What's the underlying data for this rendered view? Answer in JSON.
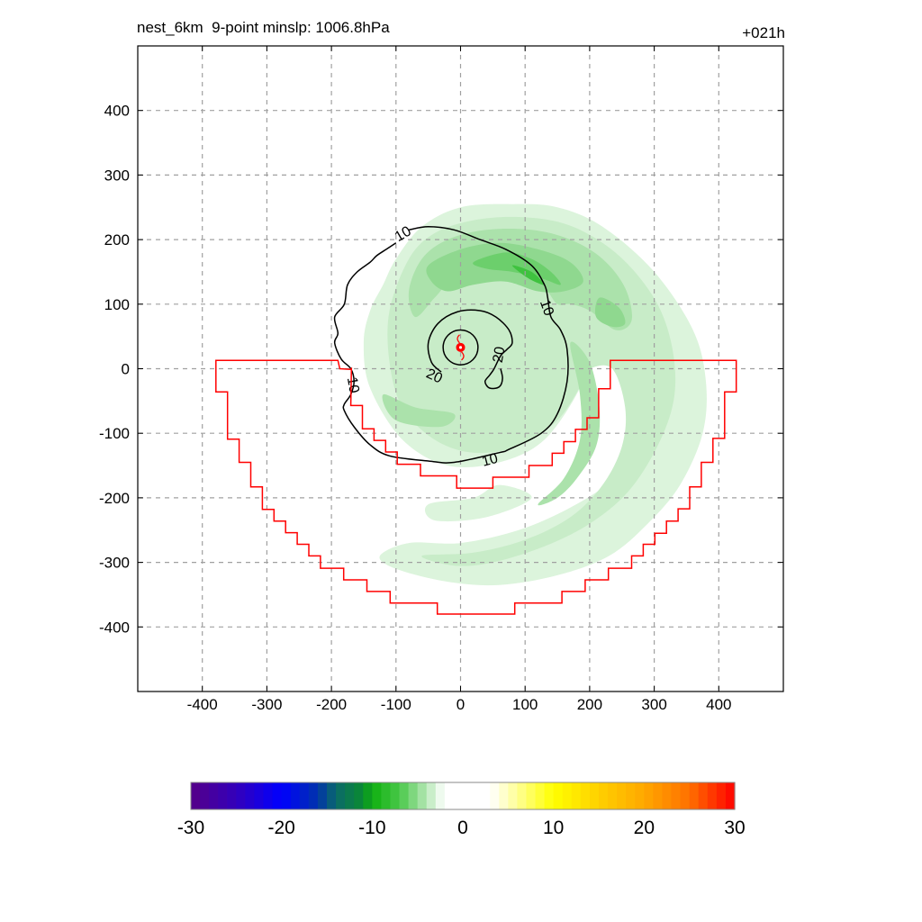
{
  "chart_data": {
    "type": "heatmap",
    "title_left": "nest_6km  9-point minslp: 1006.8hPa",
    "title_right": "+021h",
    "xlabel": "",
    "ylabel": "",
    "xlim": [
      -500,
      500
    ],
    "ylim": [
      -500,
      500
    ],
    "grid": true,
    "x_ticks": [
      -400,
      -300,
      -200,
      -100,
      0,
      100,
      200,
      300,
      400
    ],
    "y_ticks": [
      400,
      300,
      200,
      100,
      0,
      -100,
      -200,
      -300,
      -400
    ],
    "storm_center": [
      0,
      33
    ],
    "storm_symbol": "tropical-cyclone-icon",
    "colorbar": {
      "min": -30,
      "max": 30,
      "step": 1,
      "tick_labels": [
        "-30",
        "-20",
        "-10",
        "0",
        "10",
        "20",
        "30"
      ],
      "tick_values": [
        -30,
        -20,
        -10,
        0,
        10,
        20,
        30
      ],
      "anchor_colors": [
        {
          "v": -30,
          "c": "#550088"
        },
        {
          "v": -25,
          "c": "#3300bb"
        },
        {
          "v": -20,
          "c": "#0000ff"
        },
        {
          "v": -16,
          "c": "#0033aa"
        },
        {
          "v": -14,
          "c": "#0b6a6a"
        },
        {
          "v": -11,
          "c": "#0a8a30"
        },
        {
          "v": -10,
          "c": "#10b010"
        },
        {
          "v": -7,
          "c": "#48c848"
        },
        {
          "v": -5,
          "c": "#90dc90"
        },
        {
          "v": -3,
          "c": "#dcf4dc"
        },
        {
          "v": -2,
          "c": "#ffffff"
        },
        {
          "v": 3,
          "c": "#ffffff"
        },
        {
          "v": 4,
          "c": "#ffffe0"
        },
        {
          "v": 10,
          "c": "#ffff00"
        },
        {
          "v": 15,
          "c": "#ffd000"
        },
        {
          "v": 20,
          "c": "#ffa800"
        },
        {
          "v": 25,
          "c": "#ff7000"
        },
        {
          "v": 30,
          "c": "#ff0000"
        }
      ]
    },
    "shading_levels": [
      {
        "level": -3,
        "color": "#dcf4dc"
      },
      {
        "level": -4,
        "color": "#c8ecc8"
      },
      {
        "level": -5,
        "color": "#abe2ab"
      },
      {
        "level": -6,
        "color": "#8fd88f"
      },
      {
        "level": -7,
        "color": "#6ccf6c"
      },
      {
        "level": -8,
        "color": "#3fc23f"
      }
    ],
    "shaded_regions": [
      {
        "level": -3,
        "points": [
          [
            -120,
            130
          ],
          [
            -100,
            170
          ],
          [
            -60,
            220
          ],
          [
            0,
            250
          ],
          [
            80,
            255
          ],
          [
            150,
            250
          ],
          [
            220,
            220
          ],
          [
            300,
            150
          ],
          [
            360,
            60
          ],
          [
            380,
            -20
          ],
          [
            375,
            -100
          ],
          [
            340,
            -180
          ],
          [
            290,
            -240
          ],
          [
            230,
            -290
          ],
          [
            150,
            -320
          ],
          [
            60,
            -335
          ],
          [
            -20,
            -330
          ],
          [
            -100,
            -310
          ],
          [
            -125,
            -290
          ],
          [
            -80,
            -270
          ],
          [
            0,
            -270
          ],
          [
            90,
            -250
          ],
          [
            170,
            -215
          ],
          [
            230,
            -175
          ],
          [
            265,
            -120
          ],
          [
            270,
            -50
          ],
          [
            250,
            10
          ],
          [
            195,
            20
          ],
          [
            185,
            -30
          ],
          [
            130,
            -110
          ],
          [
            60,
            -145
          ],
          [
            -20,
            -150
          ],
          [
            -90,
            -110
          ],
          [
            -140,
            -30
          ],
          [
            -150,
            40
          ],
          [
            -140,
            90
          ]
        ]
      },
      {
        "level": -3,
        "points": [
          [
            -50,
            -210
          ],
          [
            20,
            -200
          ],
          [
            60,
            -180
          ],
          [
            110,
            -200
          ],
          [
            40,
            -230
          ],
          [
            -40,
            -235
          ]
        ]
      },
      {
        "level": -4,
        "points": [
          [
            -80,
            170
          ],
          [
            -40,
            210
          ],
          [
            20,
            230
          ],
          [
            90,
            235
          ],
          [
            160,
            225
          ],
          [
            220,
            195
          ],
          [
            270,
            150
          ],
          [
            310,
            90
          ],
          [
            330,
            20
          ],
          [
            330,
            -50
          ],
          [
            305,
            -120
          ],
          [
            260,
            -190
          ],
          [
            200,
            -240
          ],
          [
            130,
            -275
          ],
          [
            50,
            -300
          ],
          [
            -10,
            -305
          ],
          [
            -60,
            -290
          ],
          [
            20,
            -285
          ],
          [
            100,
            -265
          ],
          [
            170,
            -230
          ],
          [
            220,
            -180
          ],
          [
            250,
            -120
          ],
          [
            255,
            -60
          ],
          [
            235,
            0
          ],
          [
            200,
            0
          ],
          [
            190,
            -20
          ],
          [
            150,
            -80
          ],
          [
            90,
            -120
          ],
          [
            20,
            -130
          ],
          [
            -40,
            -110
          ],
          [
            -90,
            -60
          ],
          [
            -110,
            10
          ],
          [
            -110,
            90
          ]
        ]
      },
      {
        "level": -5,
        "points": [
          [
            -60,
            170
          ],
          [
            -20,
            200
          ],
          [
            40,
            215
          ],
          [
            110,
            215
          ],
          [
            170,
            200
          ],
          [
            220,
            170
          ],
          [
            255,
            125
          ],
          [
            265,
            75
          ],
          [
            240,
            60
          ],
          [
            200,
            90
          ],
          [
            170,
            100
          ],
          [
            150,
            100
          ],
          [
            130,
            125
          ],
          [
            100,
            140
          ],
          [
            40,
            150
          ],
          [
            -10,
            140
          ],
          [
            -40,
            110
          ],
          [
            -70,
            80
          ],
          [
            -80,
            120
          ]
        ]
      },
      {
        "level": -5,
        "points": [
          [
            170,
            40
          ],
          [
            200,
            10
          ],
          [
            215,
            -60
          ],
          [
            210,
            -120
          ],
          [
            180,
            -170
          ],
          [
            150,
            -200
          ],
          [
            120,
            -210
          ],
          [
            160,
            -170
          ],
          [
            185,
            -110
          ],
          [
            185,
            -40
          ]
        ]
      },
      {
        "level": -5,
        "points": [
          [
            -120,
            -40
          ],
          [
            -70,
            -60
          ],
          [
            -10,
            -70
          ],
          [
            -30,
            -90
          ],
          [
            -100,
            -80
          ]
        ]
      },
      {
        "level": -6,
        "points": [
          [
            -50,
            160
          ],
          [
            0,
            185
          ],
          [
            60,
            195
          ],
          [
            120,
            185
          ],
          [
            170,
            165
          ],
          [
            190,
            135
          ],
          [
            160,
            120
          ],
          [
            120,
            120
          ],
          [
            70,
            135
          ],
          [
            20,
            130
          ],
          [
            -20,
            120
          ],
          [
            -45,
            135
          ]
        ]
      },
      {
        "level": -6,
        "points": [
          [
            215,
            110
          ],
          [
            245,
            95
          ],
          [
            255,
            70
          ],
          [
            235,
            65
          ],
          [
            210,
            80
          ]
        ]
      },
      {
        "level": -7,
        "points": [
          [
            20,
            165
          ],
          [
            70,
            180
          ],
          [
            110,
            170
          ],
          [
            140,
            150
          ],
          [
            155,
            130
          ],
          [
            125,
            140
          ],
          [
            80,
            150
          ],
          [
            40,
            155
          ]
        ]
      },
      {
        "level": -8,
        "points": [
          [
            80,
            160
          ],
          [
            110,
            150
          ],
          [
            130,
            130
          ],
          [
            105,
            140
          ]
        ]
      }
    ],
    "contours": [
      {
        "label": "10",
        "labels_at": [
          [
            -90,
            210,
            -30
          ],
          [
            135,
            95,
            70
          ],
          [
            45,
            -140,
            -15
          ],
          [
            -165,
            -25,
            80
          ]
        ],
        "points": [
          [
            -80,
            215
          ],
          [
            -50,
            220
          ],
          [
            -10,
            215
          ],
          [
            30,
            200
          ],
          [
            70,
            185
          ],
          [
            110,
            160
          ],
          [
            130,
            130
          ],
          [
            135,
            110
          ],
          [
            140,
            80
          ],
          [
            155,
            60
          ],
          [
            165,
            30
          ],
          [
            165,
            -20
          ],
          [
            150,
            -70
          ],
          [
            125,
            -100
          ],
          [
            75,
            -125
          ],
          [
            60,
            -130
          ],
          [
            -10,
            -145
          ],
          [
            -50,
            -143
          ],
          [
            -110,
            -135
          ],
          [
            -140,
            -118
          ],
          [
            -165,
            -90
          ],
          [
            -180,
            -65
          ],
          [
            -180,
            -55
          ],
          [
            -170,
            -40
          ],
          [
            -165,
            -20
          ],
          [
            -170,
            0
          ],
          [
            -185,
            15
          ],
          [
            -195,
            40
          ],
          [
            -190,
            55
          ],
          [
            -195,
            80
          ],
          [
            -180,
            100
          ],
          [
            -175,
            130
          ],
          [
            -160,
            150
          ],
          [
            -140,
            165
          ],
          [
            -130,
            175
          ],
          [
            -115,
            185
          ],
          [
            -100,
            195
          ]
        ]
      },
      {
        "label": "20",
        "labels_at": [
          [
            -40,
            -10,
            25
          ],
          [
            58,
            22,
            -80
          ]
        ],
        "points": [
          [
            -30,
            -5
          ],
          [
            -45,
            10
          ],
          [
            -50,
            40
          ],
          [
            -35,
            70
          ],
          [
            -5,
            88
          ],
          [
            30,
            90
          ],
          [
            55,
            80
          ],
          [
            75,
            60
          ],
          [
            80,
            40
          ],
          [
            72,
            30
          ],
          [
            62,
            20
          ],
          [
            52,
            0
          ],
          [
            45,
            -10
          ],
          [
            38,
            -20
          ],
          [
            45,
            -30
          ],
          [
            60,
            -28
          ],
          [
            65,
            -15
          ],
          [
            62,
            0
          ]
        ]
      },
      {
        "label": "",
        "labels_at": [],
        "points": "circle:0,33,27"
      }
    ],
    "polygon": {
      "color": "#ff0000",
      "points": [
        [
          -379,
          13
        ],
        [
          -190,
          13
        ],
        [
          -187,
          0
        ],
        [
          -170,
          -1
        ],
        [
          -169,
          0
        ],
        [
          -170,
          -57
        ],
        [
          -152,
          -57
        ],
        [
          -152,
          -93
        ],
        [
          -134,
          -93
        ],
        [
          -134,
          -111
        ],
        [
          -116,
          -111
        ],
        [
          -116,
          -129
        ],
        [
          -98,
          -129
        ],
        [
          -98,
          -148
        ],
        [
          -62,
          -148
        ],
        [
          -62,
          -166
        ],
        [
          -6,
          -166
        ],
        [
          -6,
          -185
        ],
        [
          50,
          -185
        ],
        [
          50,
          -168
        ],
        [
          106,
          -168
        ],
        [
          106,
          -150
        ],
        [
          142,
          -150
        ],
        [
          142,
          -131
        ],
        [
          160,
          -131
        ],
        [
          160,
          -113
        ],
        [
          178,
          -113
        ],
        [
          178,
          -94
        ],
        [
          196,
          -94
        ],
        [
          196,
          -76
        ],
        [
          214,
          -76
        ],
        [
          214,
          -31
        ],
        [
          232,
          -31
        ],
        [
          232,
          13
        ],
        [
          427,
          13
        ],
        [
          427,
          -36
        ],
        [
          409,
          -36
        ],
        [
          409,
          -108
        ],
        [
          391,
          -108
        ],
        [
          391,
          -145
        ],
        [
          373,
          -145
        ],
        [
          373,
          -183
        ],
        [
          355,
          -183
        ],
        [
          355,
          -217
        ],
        [
          337,
          -217
        ],
        [
          337,
          -236
        ],
        [
          319,
          -236
        ],
        [
          319,
          -255
        ],
        [
          301,
          -255
        ],
        [
          301,
          -272
        ],
        [
          283,
          -272
        ],
        [
          283,
          -290
        ],
        [
          265,
          -290
        ],
        [
          265,
          -309
        ],
        [
          229,
          -309
        ],
        [
          229,
          -327
        ],
        [
          193,
          -327
        ],
        [
          193,
          -345
        ],
        [
          157,
          -345
        ],
        [
          157,
          -363
        ],
        [
          84,
          -363
        ],
        [
          84,
          -380
        ],
        [
          -36,
          -380
        ],
        [
          -36,
          -363
        ],
        [
          -109,
          -363
        ],
        [
          -109,
          -345
        ],
        [
          -145,
          -345
        ],
        [
          -145,
          -327
        ],
        [
          -181,
          -327
        ],
        [
          -181,
          -309
        ],
        [
          -217,
          -309
        ],
        [
          -217,
          -290
        ],
        [
          -235,
          -290
        ],
        [
          -235,
          -272
        ],
        [
          -253,
          -272
        ],
        [
          -253,
          -254
        ],
        [
          -271,
          -254
        ],
        [
          -271,
          -236
        ],
        [
          -289,
          -236
        ],
        [
          -289,
          -218
        ],
        [
          -307,
          -218
        ],
        [
          -307,
          -183
        ],
        [
          -325,
          -183
        ],
        [
          -325,
          -145
        ],
        [
          -343,
          -145
        ],
        [
          -343,
          -109
        ],
        [
          -361,
          -109
        ],
        [
          -361,
          -36
        ],
        [
          -379,
          -36
        ]
      ]
    }
  }
}
